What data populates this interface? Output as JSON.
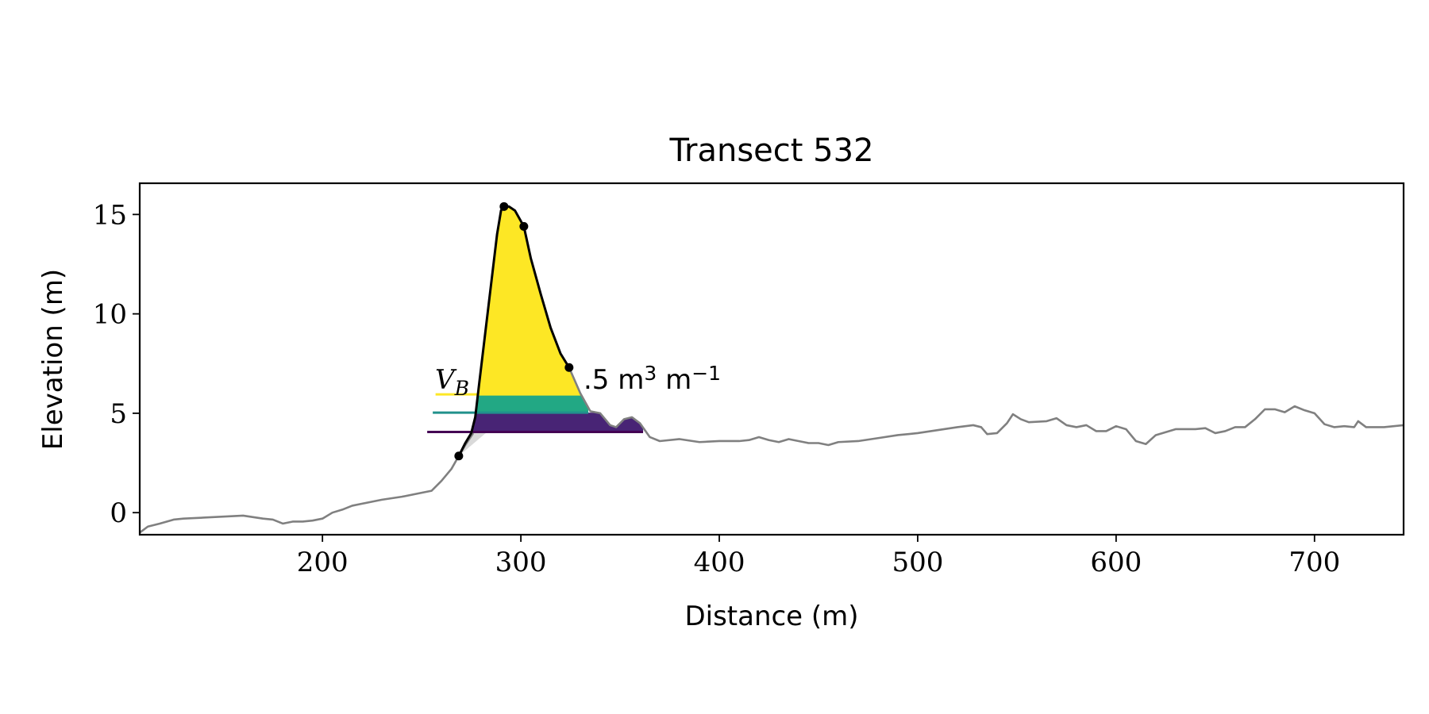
{
  "chart_data": {
    "type": "line",
    "title": "Transect 532",
    "xlabel": "Distance (m)",
    "ylabel": "Elevation (m)",
    "xlim": [
      107.9,
      744.9
    ],
    "ylim": [
      -1.11,
      16.57
    ],
    "xticks": [
      200,
      300,
      400,
      500,
      600,
      700
    ],
    "yticks": [
      0,
      5,
      10,
      15
    ],
    "series": [
      {
        "color": "#808080",
        "x": [
          108,
          112,
          118,
          125,
          130,
          140,
          150,
          160,
          170,
          175,
          180,
          185,
          190,
          195,
          200,
          205,
          210,
          215,
          220,
          225,
          230,
          240,
          250,
          255,
          260,
          265,
          268.7,
          272,
          276,
          300,
          324.3,
          330,
          335,
          340,
          345,
          348,
          352,
          356,
          360,
          365,
          370,
          380,
          390,
          400,
          410,
          415,
          420,
          425,
          430,
          435,
          440,
          445,
          450,
          455,
          460,
          470,
          480,
          490,
          500,
          510,
          520,
          528,
          532,
          535,
          540,
          545,
          548,
          552,
          556,
          565,
          570,
          575,
          580,
          585,
          590,
          595,
          600,
          605,
          610,
          615,
          620,
          630,
          640,
          645,
          650,
          655,
          660,
          665,
          670,
          675,
          680,
          685,
          690,
          695,
          700,
          705,
          710,
          715,
          720,
          722,
          726,
          735,
          745
        ],
        "values": [
          -1.0,
          -0.7,
          -0.55,
          -0.35,
          -0.3,
          -0.25,
          -0.2,
          -0.15,
          -0.3,
          -0.35,
          -0.55,
          -0.45,
          -0.45,
          -0.4,
          -0.3,
          0.0,
          0.15,
          0.35,
          0.45,
          0.55,
          0.65,
          0.8,
          1.0,
          1.1,
          1.6,
          2.2,
          2.85,
          3.4,
          4.0,
          null,
          7.3,
          6.0,
          5.1,
          5.0,
          4.4,
          4.3,
          4.7,
          4.8,
          4.5,
          3.8,
          3.6,
          3.7,
          3.55,
          3.6,
          3.6,
          3.65,
          3.8,
          3.65,
          3.55,
          3.7,
          3.6,
          3.5,
          3.5,
          3.4,
          3.55,
          3.6,
          3.75,
          3.9,
          4.0,
          4.15,
          4.3,
          4.4,
          4.3,
          3.95,
          4.0,
          4.5,
          4.95,
          4.7,
          4.55,
          4.6,
          4.75,
          4.4,
          4.3,
          4.4,
          4.1,
          4.1,
          4.35,
          4.2,
          3.6,
          3.45,
          3.9,
          4.2,
          4.2,
          4.25,
          4.0,
          4.1,
          4.3,
          4.3,
          4.7,
          5.2,
          5.2,
          5.05,
          5.35,
          5.15,
          5.0,
          4.45,
          4.3,
          4.35,
          4.3,
          4.6,
          4.3,
          4.3,
          4.4
        ]
      },
      {
        "color": "#000000",
        "x": [
          268.7,
          272,
          275,
          277,
          279,
          282,
          285,
          288,
          290,
          291.5,
          294,
          297,
          301.5,
          305,
          310,
          315,
          320,
          324.3
        ],
        "values": [
          2.85,
          3.5,
          4.0,
          4.8,
          6.5,
          9.0,
          11.5,
          14.0,
          15.2,
          15.4,
          15.4,
          15.2,
          14.4,
          12.8,
          11.0,
          9.3,
          8.0,
          7.3
        ]
      },
      {
        "type": "scatter",
        "color": "#000000",
        "x": [
          268.7,
          291.5,
          301.5,
          324.3
        ],
        "values": [
          2.85,
          15.4,
          14.4,
          7.3
        ]
      }
    ],
    "shade": {
      "color": "#d9d9d9",
      "x": [
        268.7,
        276,
        283
      ],
      "values": [
        2.85,
        4.06,
        4.06
      ]
    },
    "bands": [
      {
        "lower": 4.06,
        "upper": 5.03,
        "x": [
          252.8,
          361.6
        ],
        "color": "#440154",
        "fill": "#482475"
      },
      {
        "lower": 5.03,
        "upper": 5.95,
        "x": [
          255.6,
          334
        ],
        "color": "#21918c",
        "fill": "#22a884"
      },
      {
        "lower": 5.95,
        "x": [
          257,
          330
        ],
        "color": "#fde725",
        "fill": "#fde725"
      }
    ],
    "annotations": [
      {
        "parts": [
          {
            "text": "V",
            "style": "italic"
          },
          {
            "text": "B",
            "style": "sub"
          }
        ]
      },
      {
        "parts": [
          {
            "text": ".5 m"
          },
          {
            "text": "3",
            "style": "sup"
          },
          {
            "text": " m"
          },
          {
            "text": "−1",
            "style": "sup"
          }
        ]
      }
    ]
  }
}
